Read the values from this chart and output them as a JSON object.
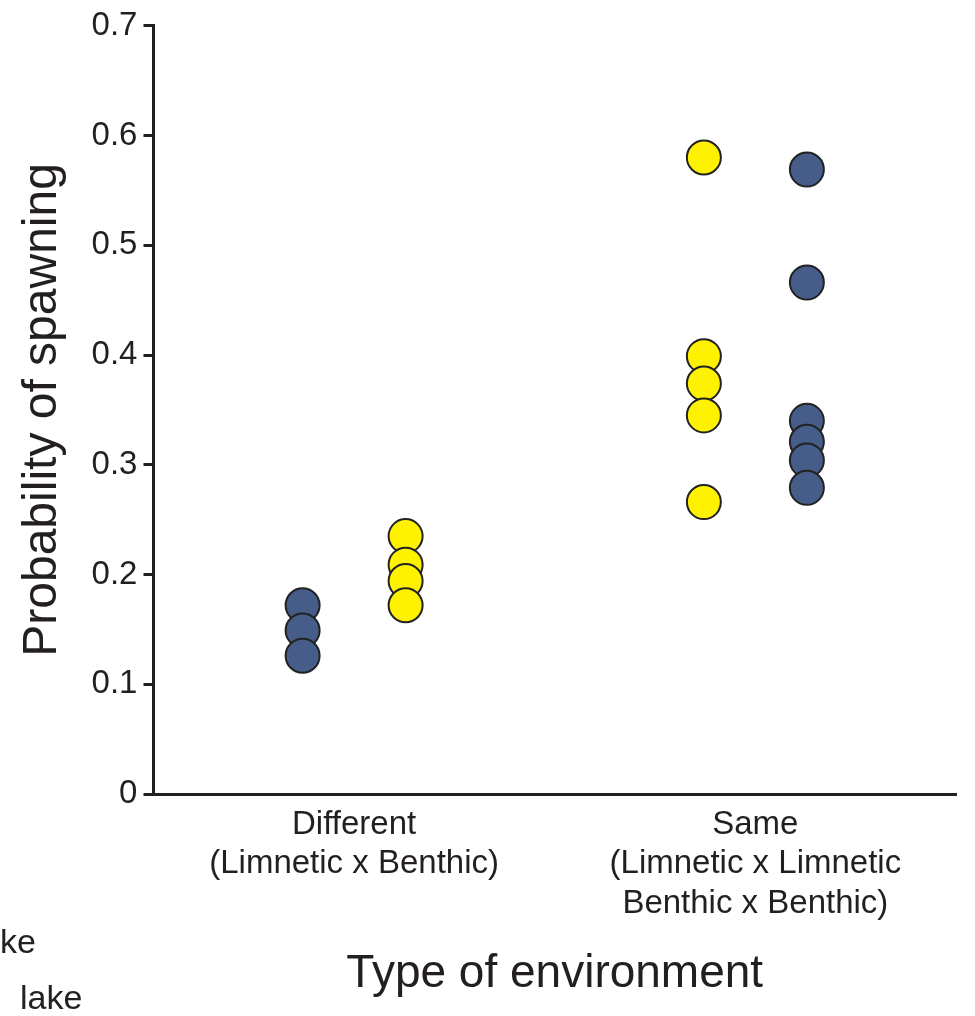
{
  "chart_data": {
    "type": "scatter",
    "xlabel": "Type of environment",
    "ylabel": "Probability of spawning",
    "categories": [
      "Different\n(Limnetic x Benthic)",
      "Same\n(Limnetic x Limnetic\nBenthic x Benthic)"
    ],
    "series": [
      {
        "color": "#465d8a",
        "x": [
          "Different\n(Limnetic x Benthic)",
          "Different\n(Limnetic x Benthic)",
          "Different\n(Limnetic x Benthic)"
        ],
        "values": [
          0.172,
          0.149,
          0.126
        ]
      },
      {
        "color": "#fff200",
        "x": [
          "Different\n(Limnetic x Benthic)",
          "Different\n(Limnetic x Benthic)",
          "Different\n(Limnetic x Benthic)",
          "Different\n(Limnetic x Benthic)"
        ],
        "values": [
          0.235,
          0.209,
          0.194,
          0.172
        ]
      },
      {
        "color": "#fff200",
        "x": [
          "Same\n(Limnetic x Limnetic\nBenthic x Benthic)",
          "Same\n(Limnetic x Limnetic\nBenthic x Benthic)",
          "Same\n(Limnetic x Limnetic\nBenthic x Benthic)",
          "Same\n(Limnetic x Limnetic\nBenthic x Benthic)",
          "Same\n(Limnetic x Limnetic\nBenthic x Benthic)"
        ],
        "values": [
          0.58,
          0.399,
          0.374,
          0.345,
          0.266
        ]
      },
      {
        "color": "#465d8a",
        "x": [
          "Same\n(Limnetic x Limnetic\nBenthic x Benthic)",
          "Same\n(Limnetic x Limnetic\nBenthic x Benthic)",
          "Same\n(Limnetic x Limnetic\nBenthic x Benthic)",
          "Same\n(Limnetic x Limnetic\nBenthic x Benthic)",
          "Same\n(Limnetic x Limnetic\nBenthic x Benthic)",
          "Same\n(Limnetic x Limnetic\nBenthic x Benthic)"
        ],
        "values": [
          0.569,
          0.466,
          0.34,
          0.321,
          0.304,
          0.279
        ]
      }
    ],
    "ylim": [
      0,
      0.7
    ],
    "yticks": [
      0,
      0.1,
      0.2,
      0.3,
      0.4,
      0.5,
      0.6,
      0.7
    ],
    "marker": "circle",
    "annotations": [
      "ke",
      "lake"
    ]
  }
}
